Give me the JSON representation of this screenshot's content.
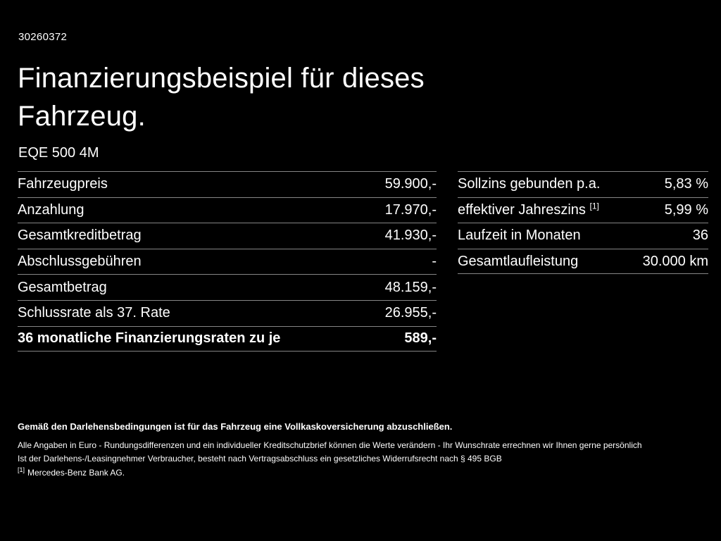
{
  "page": {
    "doc_id": "30260372",
    "title_line1": "Finanzierungsbeispiel für dieses",
    "title_line2": "Fahrzeug.",
    "model": "EQE 500 4M"
  },
  "left_table": {
    "rows": [
      {
        "label": "Fahrzeugpreis",
        "value": "59.900,-"
      },
      {
        "label": "Anzahlung",
        "value": "17.970,-"
      },
      {
        "label": "Gesamtkreditbetrag",
        "value": "41.930,-"
      },
      {
        "label": "Abschlussgebühren",
        "value": "-"
      },
      {
        "label": "Gesamtbetrag",
        "value": "48.159,-"
      },
      {
        "label": "Schlussrate als 37. Rate",
        "value": "26.955,-"
      },
      {
        "label": "36 monatliche Finanzierungsraten zu je",
        "value": "589,-"
      }
    ]
  },
  "right_table": {
    "rows": [
      {
        "label": "Sollzins gebunden p.a.",
        "value": "5,83 %"
      },
      {
        "label": "effektiver Jahreszins",
        "sup": "[1]",
        "value": "5,99 %"
      },
      {
        "label": "Laufzeit in Monaten",
        "value": "36"
      },
      {
        "label": "Gesamtlaufleistung",
        "value": "30.000 km"
      }
    ]
  },
  "footer": {
    "insurance_note": "Gemäß den Darlehensbedingungen ist für das Fahrzeug eine Vollkaskoversicherung abzuschließen.",
    "notes": [
      "Alle Angaben in Euro - Rundungsdifferenzen und ein individueller Kreditschutzbrief können die Werte verändern - Ihr Wunschrate errechnen wir Ihnen gerne persönlich",
      "Ist der Darlehens-/Leasingnehmer Verbraucher, besteht nach Vertragsabschluss ein gesetzliches Widerrufsrecht nach § 495 BGB"
    ],
    "footnote_marker": "[1]",
    "footnote_text": "Mercedes-Benz Bank AG."
  },
  "colors": {
    "background": "#000000",
    "text": "#ffffff",
    "divider": "#858585"
  }
}
